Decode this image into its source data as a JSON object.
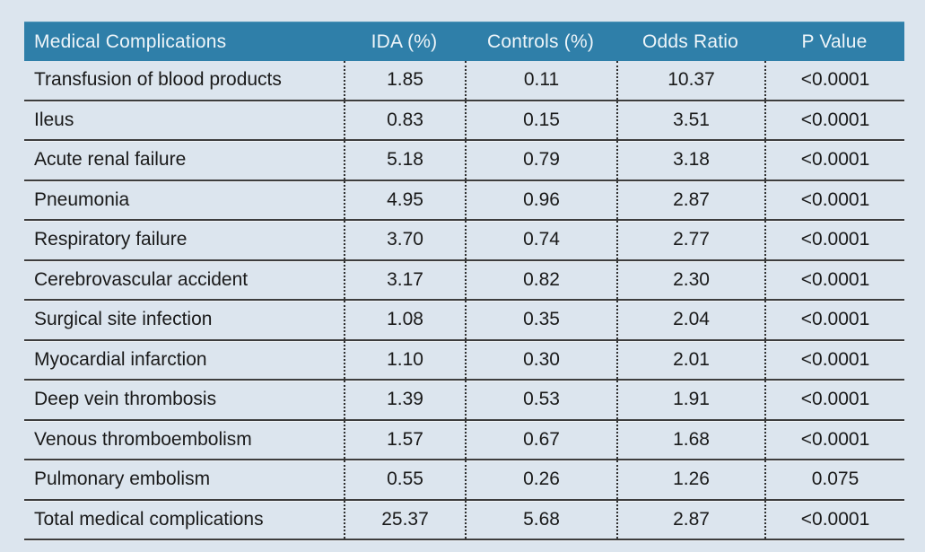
{
  "colors": {
    "page_background": "#dce5ee",
    "header_background": "#2f7fa9",
    "header_text": "#eef5f9",
    "body_text": "#1a1a1a",
    "row_separator_line": "#3d3d3d",
    "dotted_column_divider": "#2e2e2e"
  },
  "chart_data": {
    "type": "table",
    "title": "",
    "columns": [
      "Medical Complications",
      "IDA (%)",
      "Controls (%)",
      "Odds Ratio",
      "P Value"
    ],
    "rows": [
      [
        "Transfusion of blood products",
        "1.85",
        "0.11",
        "10.37",
        "<0.0001"
      ],
      [
        "Ileus",
        "0.83",
        "0.15",
        "3.51",
        "<0.0001"
      ],
      [
        "Acute renal failure",
        "5.18",
        "0.79",
        "3.18",
        "<0.0001"
      ],
      [
        "Pneumonia",
        "4.95",
        "0.96",
        "2.87",
        "<0.0001"
      ],
      [
        "Respiratory failure",
        "3.70",
        "0.74",
        "2.77",
        "<0.0001"
      ],
      [
        "Cerebrovascular accident",
        "3.17",
        "0.82",
        "2.30",
        "<0.0001"
      ],
      [
        "Surgical site infection",
        "1.08",
        "0.35",
        "2.04",
        "<0.0001"
      ],
      [
        "Myocardial infarction",
        "1.10",
        "0.30",
        "2.01",
        "<0.0001"
      ],
      [
        "Deep vein thrombosis",
        "1.39",
        "0.53",
        "1.91",
        "<0.0001"
      ],
      [
        "Venous thromboembolism",
        "1.57",
        "0.67",
        "1.68",
        "<0.0001"
      ],
      [
        "Pulmonary embolism",
        "0.55",
        "0.26",
        "1.26",
        "0.075"
      ],
      [
        "Total medical complications",
        "25.37",
        "5.68",
        "2.87",
        "<0.0001"
      ]
    ]
  }
}
